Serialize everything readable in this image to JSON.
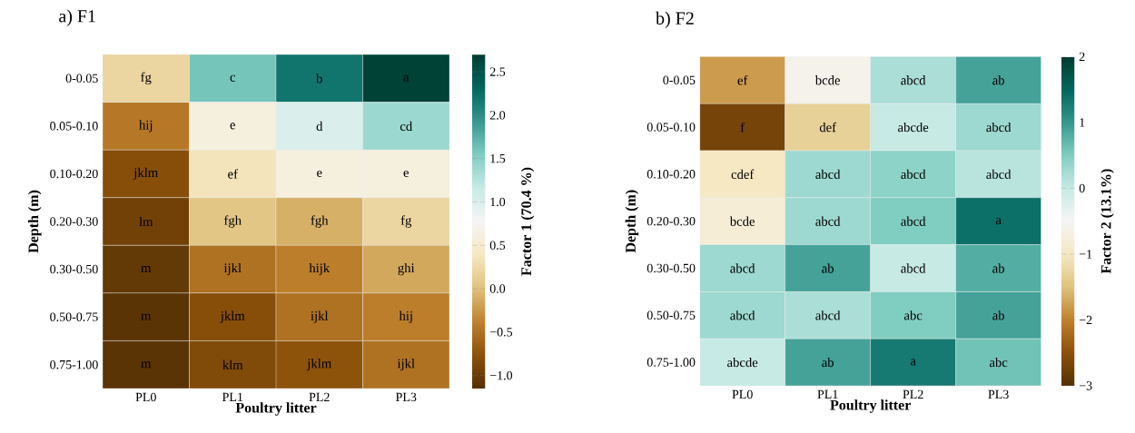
{
  "chart_data": [
    {
      "type": "heatmap",
      "title": "a) F1",
      "xlabel": "Poultry litter",
      "ylabel": "Depth (m)",
      "clabel": "Factor 1 (70.4 %)",
      "categories": [
        "PL0",
        "PL1",
        "PL2",
        "PL3"
      ],
      "y_categories": [
        "0-0.05",
        "0.05-0.10",
        "0.10-0.20",
        "0.20-0.30",
        "0.30-0.50",
        "0.50-0.75",
        "0.75-1.00"
      ],
      "cells": [
        [
          0.2,
          1.6,
          2.2,
          2.65
        ],
        [
          -0.45,
          0.6,
          1.0,
          1.4
        ],
        [
          -0.8,
          0.35,
          0.6,
          0.6
        ],
        [
          -0.95,
          0.05,
          -0.1,
          0.2
        ],
        [
          -1.05,
          -0.5,
          -0.4,
          -0.15
        ],
        [
          -1.1,
          -0.8,
          -0.5,
          -0.4
        ],
        [
          -1.1,
          -0.85,
          -0.75,
          -0.5
        ]
      ],
      "cell_labels": [
        [
          "fg",
          "c",
          "b",
          "a"
        ],
        [
          "hij",
          "e",
          "d",
          "cd"
        ],
        [
          "jklm",
          "ef",
          "e",
          "e"
        ],
        [
          "lm",
          "fgh",
          "fgh",
          "fg"
        ],
        [
          "m",
          "ijkl",
          "hijk",
          "ghi"
        ],
        [
          "m",
          "jklm",
          "ijkl",
          "hij"
        ],
        [
          "m",
          "klm",
          "jklm",
          "ijkl"
        ]
      ],
      "clim": [
        -1.15,
        2.7
      ],
      "cticks": [
        {
          "value": -1.0,
          "label": "−1.0"
        },
        {
          "value": -0.5,
          "label": "−0.5"
        },
        {
          "value": 0.0,
          "label": "0.0"
        },
        {
          "value": 0.5,
          "label": "0.5"
        },
        {
          "value": 1.0,
          "label": "1.0"
        },
        {
          "value": 1.5,
          "label": "1.5"
        },
        {
          "value": 2.0,
          "label": "2.0"
        },
        {
          "value": 2.5,
          "label": "2.5"
        }
      ]
    },
    {
      "type": "heatmap",
      "title": "b) F2",
      "xlabel": "Poultry litter",
      "ylabel": "Depth (m)",
      "clabel": "Factor 2 (13.1%)",
      "categories": [
        "PL0",
        "PL1",
        "PL2",
        "PL3"
      ],
      "y_categories": [
        "0-0.05",
        "0.05-0.10",
        "0.10-0.20",
        "0.20-0.30",
        "0.30-0.50",
        "0.50-0.75",
        "0.75-1.00"
      ],
      "cells": [
        [
          -1.8,
          -0.6,
          0.2,
          0.9
        ],
        [
          -2.7,
          -1.3,
          0.0,
          0.3
        ],
        [
          -1.0,
          0.3,
          0.4,
          0.1
        ],
        [
          -0.8,
          0.3,
          0.5,
          1.4
        ],
        [
          0.3,
          0.9,
          0.0,
          0.8
        ],
        [
          0.3,
          0.2,
          0.5,
          0.9
        ],
        [
          0.0,
          0.9,
          1.3,
          0.6
        ]
      ],
      "cell_labels": [
        [
          "ef",
          "bcde",
          "abcd",
          "ab"
        ],
        [
          "f",
          "def",
          "abcde",
          "abcd"
        ],
        [
          "cdef",
          "abcd",
          "abcd",
          "abcd"
        ],
        [
          "bcde",
          "abcd",
          "abcd",
          "a"
        ],
        [
          "abcd",
          "ab",
          "abcd",
          "ab"
        ],
        [
          "abcd",
          "abcd",
          "abc",
          "ab"
        ],
        [
          "abcde",
          "ab",
          "a",
          "abc"
        ]
      ],
      "clim": [
        -3,
        2
      ],
      "cticks": [
        {
          "value": -3,
          "label": "−3"
        },
        {
          "value": -2,
          "label": "−2"
        },
        {
          "value": -1,
          "label": "−1"
        },
        {
          "value": 0,
          "label": "0"
        },
        {
          "value": 1,
          "label": "1"
        },
        {
          "value": 2,
          "label": "2"
        }
      ]
    }
  ]
}
